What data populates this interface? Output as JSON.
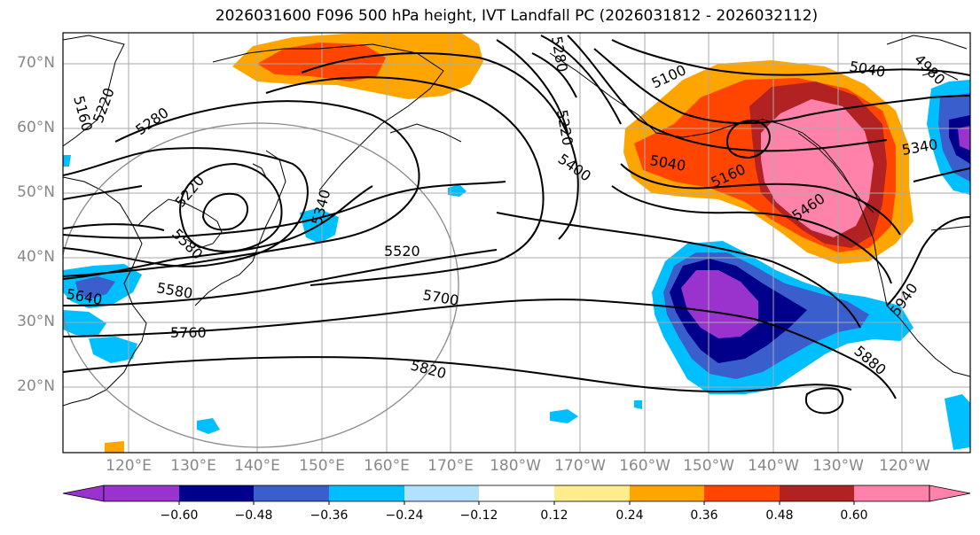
{
  "title": "2026031600 F096 500 hPa height, IVT Landfall PC (2026031812 - 2026032112)",
  "lat_labels": [
    "70°N",
    "60°N",
    "50°N",
    "40°N",
    "30°N",
    "20°N"
  ],
  "lon_labels": [
    "120°E",
    "130°E",
    "140°E",
    "150°E",
    "160°E",
    "170°E",
    "180°W",
    "170°W",
    "160°W",
    "150°W",
    "140°W",
    "130°W",
    "120°W"
  ],
  "colorbar": {
    "ticks": [
      "−0.60",
      "−0.48",
      "−0.36",
      "−0.24",
      "−0.12",
      "0.12",
      "0.24",
      "0.36",
      "0.48",
      "0.60"
    ],
    "colors": [
      "#9a32cd",
      "#00008b",
      "#3a5fcd",
      "#00bfff",
      "#b0e2ff",
      "#ffffff",
      "#ffec8b",
      "#ffa500",
      "#ff4500",
      "#b22222",
      "#ff82ab"
    ]
  },
  "contour_labels": [
    "5160",
    "5220",
    "5280",
    "5220",
    "5340",
    "5520",
    "5580",
    "5640",
    "5700",
    "5760",
    "5820",
    "5100",
    "5040",
    "5220",
    "5400",
    "5040",
    "5160",
    "5460",
    "5340",
    "5880",
    "5940",
    "4980",
    "5280",
    "5580"
  ],
  "colors": {
    "contour": "#000000",
    "grid": "#999999",
    "axis_text": "#888888"
  }
}
